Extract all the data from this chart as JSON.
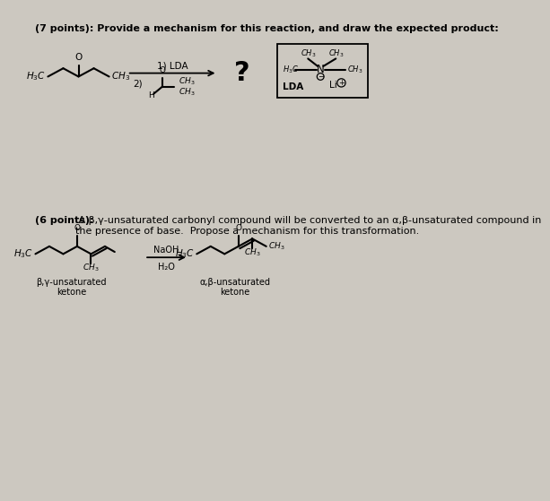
{
  "bg_color": "#ccc8c0",
  "title1": "(7 points): Provide a mechanism for this reaction, and draw the expected product:",
  "title2_bold": "(6 points):",
  "title2_rest": " A β,γ-unsaturated carbonyl compound will be converted to an α,β-unsaturated compound in\nthe presence of base.  Propose a mechanism for this transformation.",
  "question_mark": "?",
  "step1_label": "1) LDA",
  "step2_label": "2)",
  "naoh_label": "NaOH",
  "h2o_label": "H₂O",
  "beta_gamma_label": "β,γ-unsaturated\nketone",
  "alpha_beta_label": "α,β-unsaturated\nketone",
  "lda_label": "LDA",
  "li_label": "Li"
}
